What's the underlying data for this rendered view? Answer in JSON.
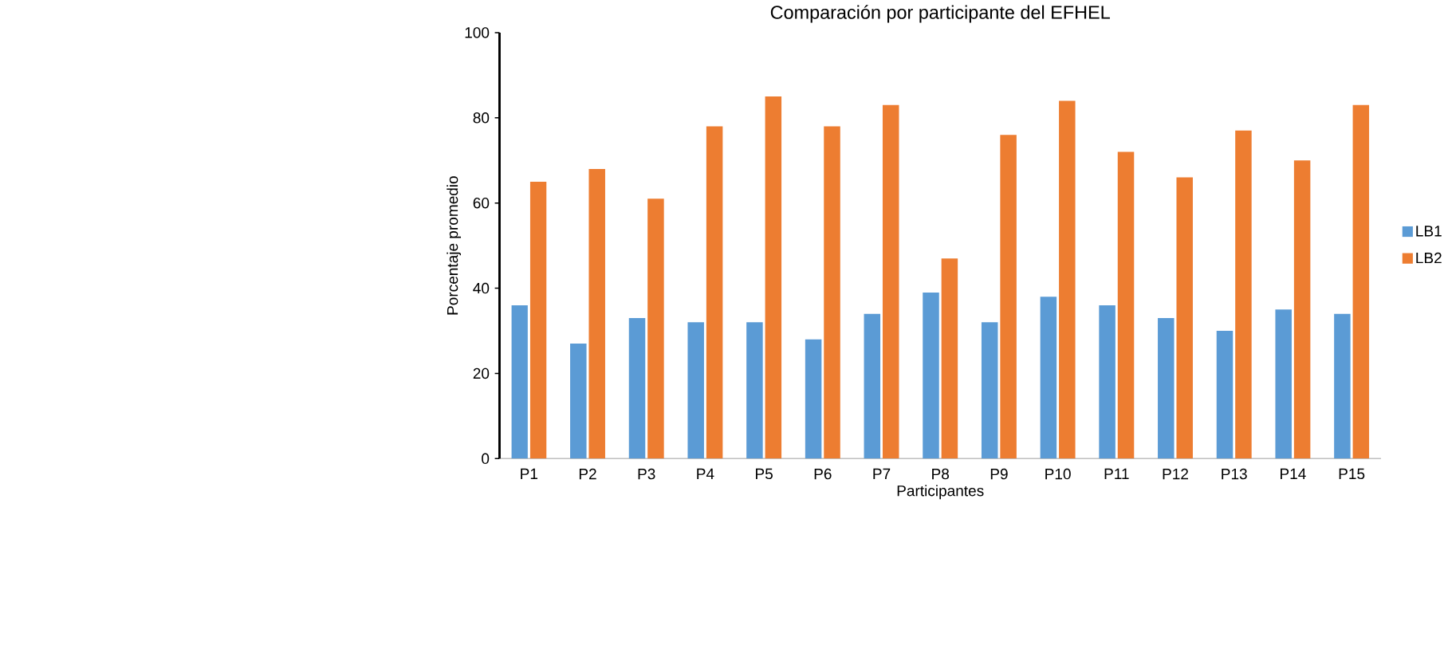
{
  "chart_data": {
    "type": "bar",
    "title": "Comparación por participante del EFHEL",
    "xlabel": "Participantes",
    "ylabel": "Porcentaje promedio",
    "categories": [
      "P1",
      "P2",
      "P3",
      "P4",
      "P5",
      "P6",
      "P7",
      "P8",
      "P9",
      "P10",
      "P11",
      "P12",
      "P13",
      "P14",
      "P15"
    ],
    "series": [
      {
        "name": "LB1",
        "color": "#5b9bd5",
        "values": [
          36,
          27,
          33,
          32,
          32,
          28,
          34,
          39,
          32,
          38,
          36,
          33,
          30,
          35,
          34
        ]
      },
      {
        "name": "LB2",
        "color": "#ed7d31",
        "values": [
          65,
          68,
          61,
          78,
          85,
          78,
          83,
          47,
          76,
          84,
          72,
          66,
          77,
          70,
          83
        ]
      }
    ],
    "ylim": [
      0,
      100
    ],
    "yticks": [
      0,
      20,
      40,
      60,
      80,
      100
    ],
    "grid": false,
    "legend": "right"
  }
}
